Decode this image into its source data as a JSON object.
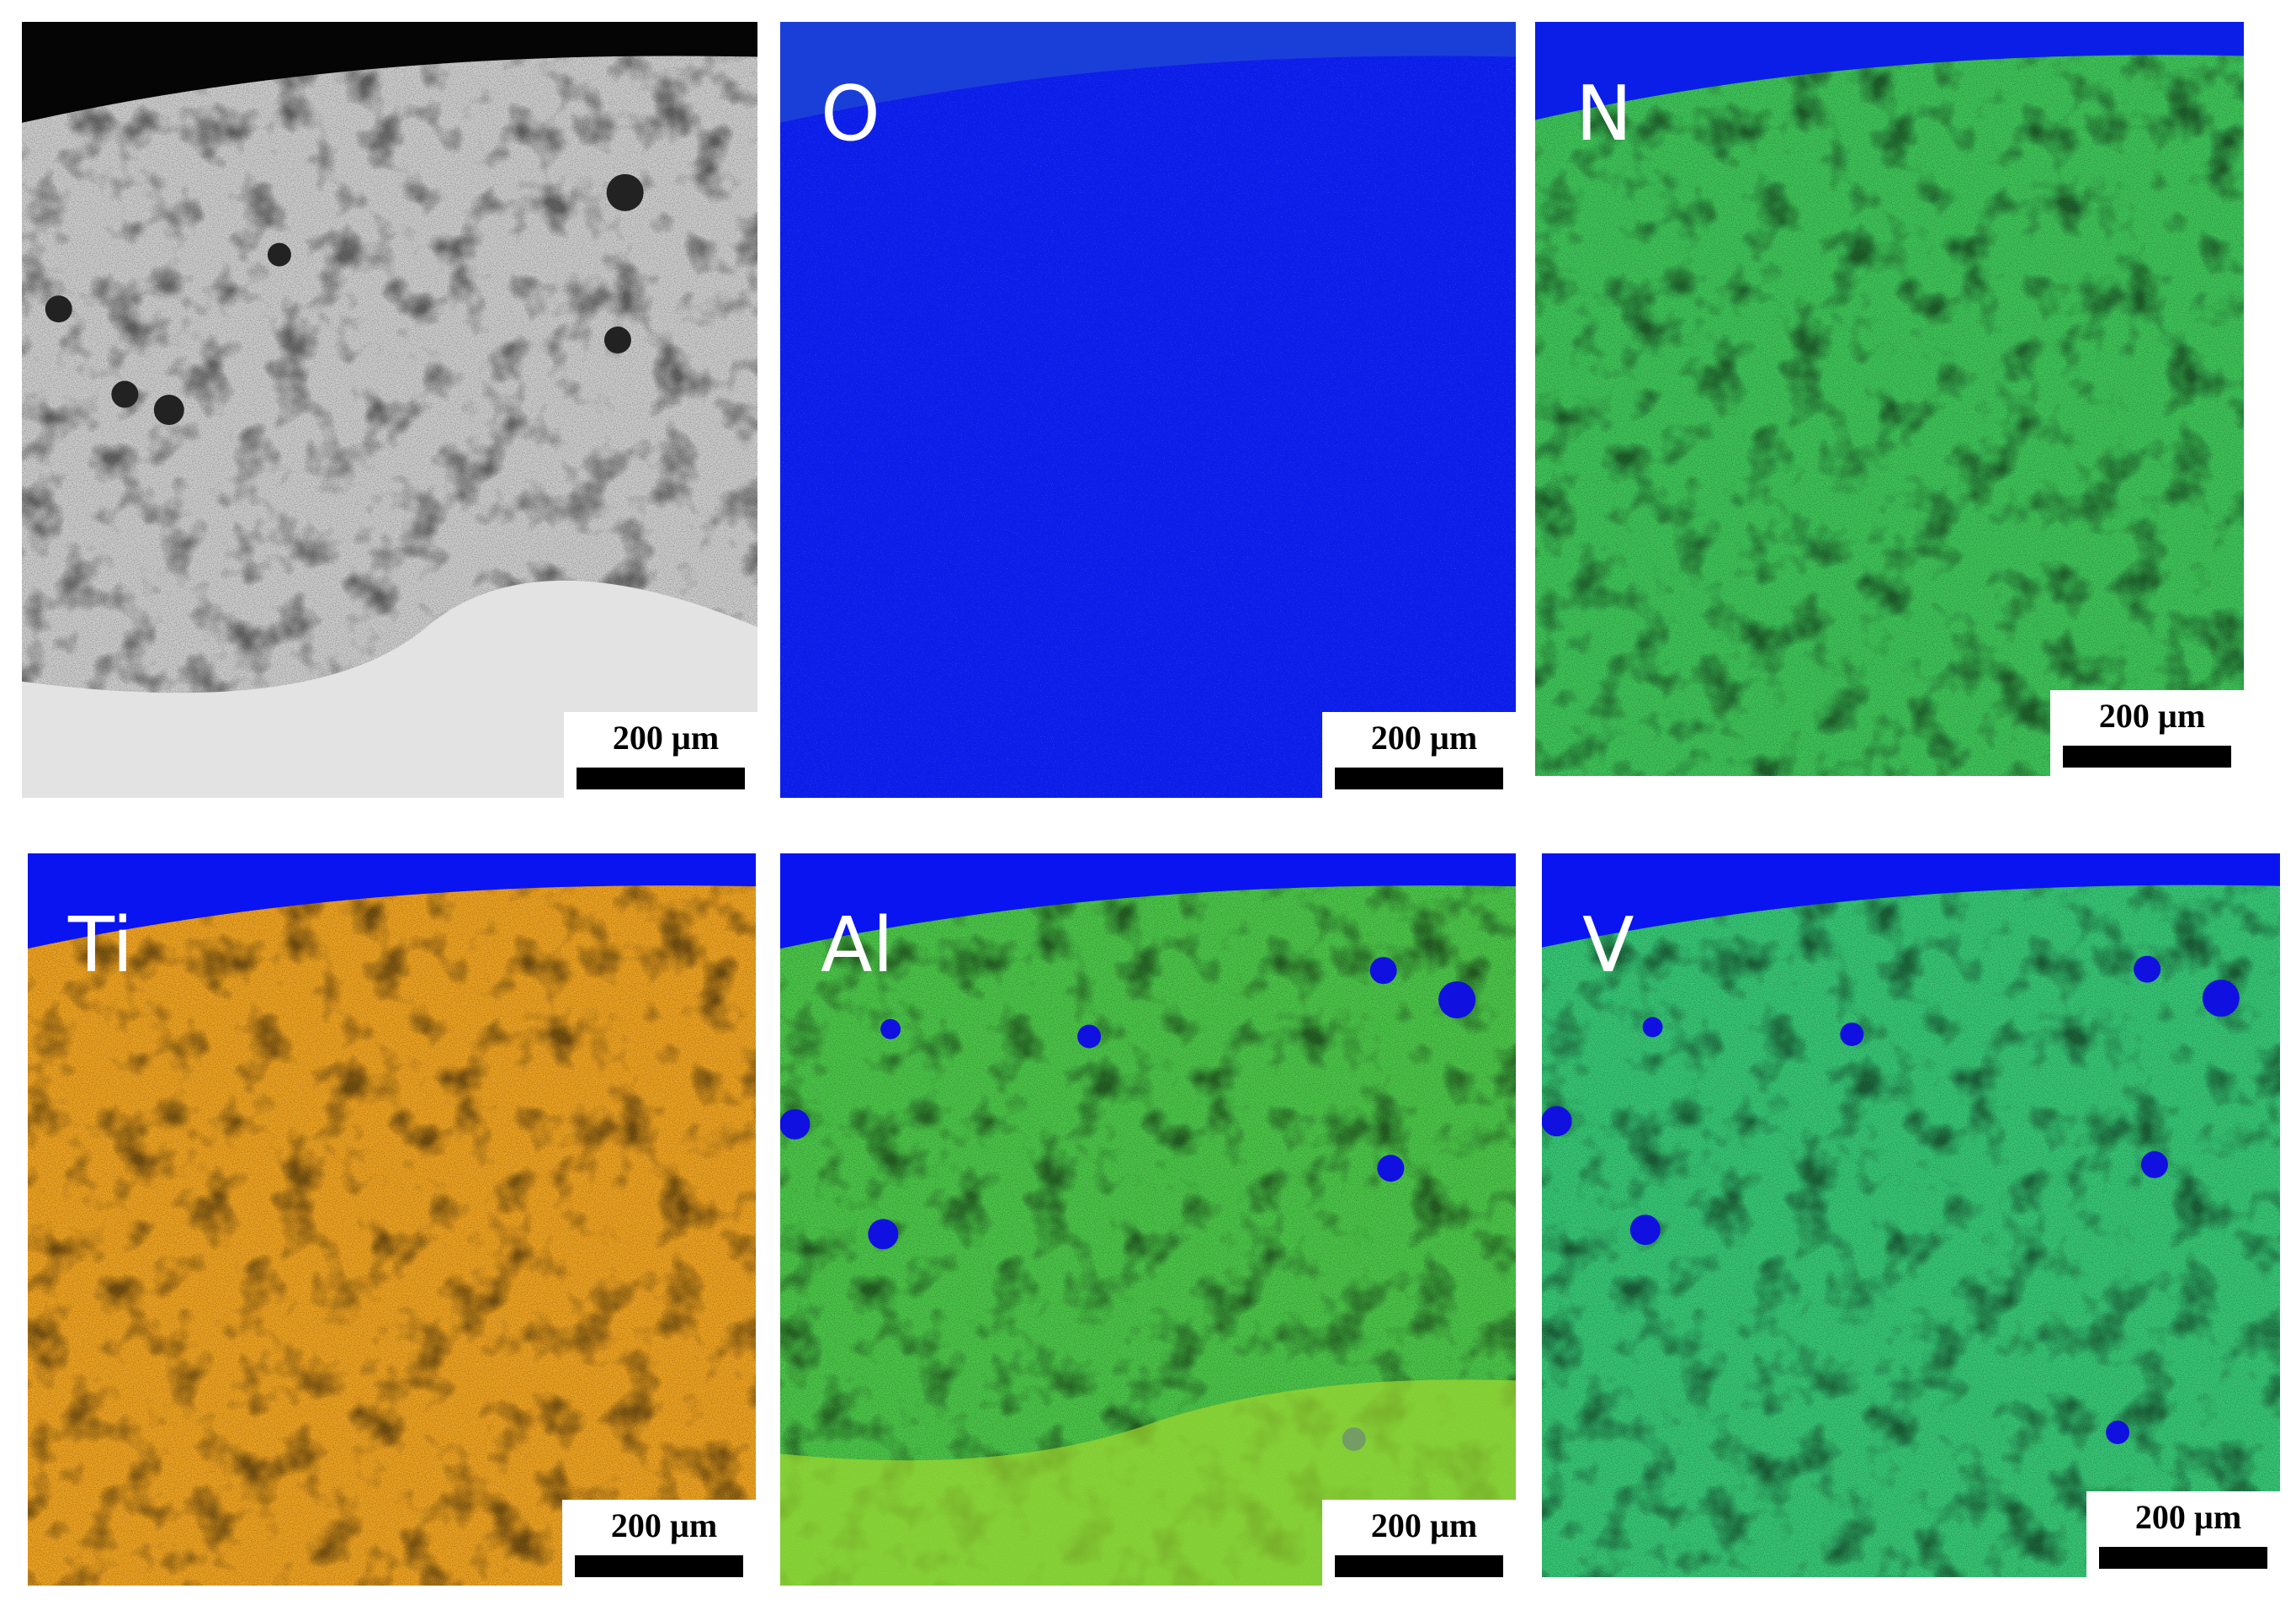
{
  "panels": [
    {
      "scale_bar": "200 µm"
    },
    {
      "label": "O",
      "scale_bar": "200 µm"
    },
    {
      "label": "N",
      "scale_bar": "200 µm"
    },
    {
      "label": "Ti",
      "scale_bar": "200 µm"
    },
    {
      "label": "Al",
      "scale_bar": "200 µm"
    },
    {
      "label": "V",
      "scale_bar": "200 µm"
    }
  ]
}
